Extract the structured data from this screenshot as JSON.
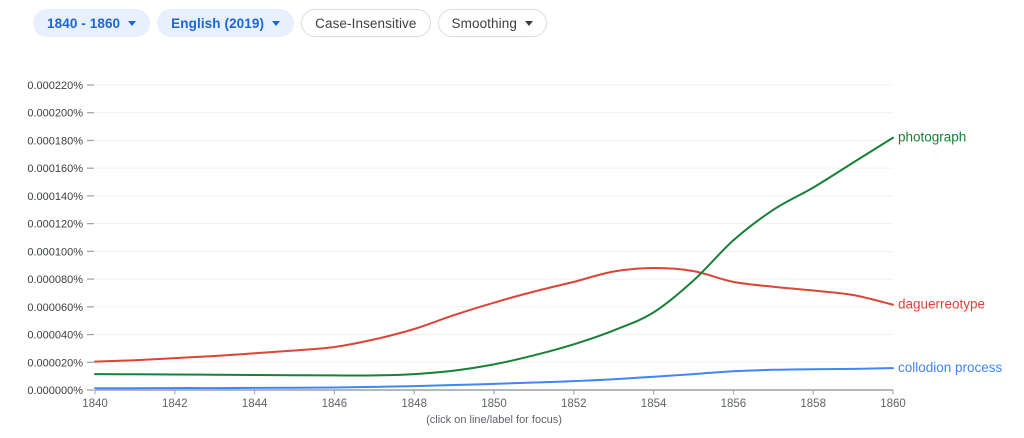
{
  "toolbar": {
    "chips": {
      "year_range": {
        "label": "1840 - 1860",
        "has_caret": true
      },
      "corpus": {
        "label": "English (2019)",
        "has_caret": true
      },
      "case": {
        "label": "Case-Insensitive",
        "has_caret": false
      },
      "smoothing": {
        "label": "Smoothing",
        "has_caret": true
      }
    }
  },
  "colors": {
    "chip_filled_bg": "#e8f0fe",
    "chip_filled_text": "#1967d2",
    "chip_outlined_border": "#dadce0",
    "chip_outlined_text": "#3c4043",
    "grid_line": "#f1f1f1",
    "axis_line": "#9aa0a6",
    "tick_mark": "#9aa0a6",
    "y_label_text": "#3c4043",
    "x_label_text": "#5f6368",
    "caption_text": "#5f6368",
    "photograph_green": "#188038",
    "daguerreotype_red": "#db4437",
    "collodion_blue": "#4285f4"
  },
  "chart_data": {
    "type": "line",
    "title": "",
    "xlabel": "",
    "ylabel": "",
    "units": "percent of corpus",
    "x": [
      1840,
      1841,
      1842,
      1843,
      1844,
      1845,
      1846,
      1847,
      1848,
      1849,
      1850,
      1851,
      1852,
      1853,
      1854,
      1855,
      1856,
      1857,
      1858,
      1859,
      1860
    ],
    "series": [
      {
        "name": "daguerreotype",
        "color": "#db4437",
        "values": [
          2.05e-05,
          2.15e-05,
          2.3e-05,
          2.45e-05,
          2.65e-05,
          2.85e-05,
          3.1e-05,
          3.65e-05,
          4.4e-05,
          5.4e-05,
          6.3e-05,
          7.1e-05,
          7.8e-05,
          8.55e-05,
          8.8e-05,
          8.58e-05,
          7.8e-05,
          7.45e-05,
          7.18e-05,
          6.85e-05,
          6.15e-05
        ]
      },
      {
        "name": "photograph",
        "color": "#188038",
        "values": [
          1.15e-05,
          1.13e-05,
          1.12e-05,
          1.1e-05,
          1.08e-05,
          1.06e-05,
          1.05e-05,
          1.05e-05,
          1.15e-05,
          1.4e-05,
          1.85e-05,
          2.5e-05,
          3.3e-05,
          4.3e-05,
          5.6e-05,
          7.9e-05,
          0.000108,
          0.00013,
          0.000146,
          0.000164,
          0.000182
        ]
      },
      {
        "name": "collodion process",
        "color": "#4285f4",
        "values": [
          1.3e-06,
          1.3e-06,
          1.4e-06,
          1.4e-06,
          1.5e-06,
          1.6e-06,
          1.8e-06,
          2.2e-06,
          2.8e-06,
          3.6e-06,
          4.4e-06,
          5.4e-06,
          6.4e-06,
          7.8e-06,
          9.5e-06,
          1.15e-05,
          1.35e-05,
          1.46e-05,
          1.5e-05,
          1.52e-05,
          1.58e-05
        ]
      }
    ],
    "xlim": [
      1840,
      1860
    ],
    "ylim": [
      0,
      0.00022
    ],
    "y_ticks": [
      {
        "value": 0.0,
        "label": "0.000000%"
      },
      {
        "value": 2e-05,
        "label": "0.000020%"
      },
      {
        "value": 4e-05,
        "label": "0.000040%"
      },
      {
        "value": 6e-05,
        "label": "0.000060%"
      },
      {
        "value": 8e-05,
        "label": "0.000080%"
      },
      {
        "value": 0.0001,
        "label": "0.000100%"
      },
      {
        "value": 0.00012,
        "label": "0.000120%"
      },
      {
        "value": 0.00014,
        "label": "0.000140%"
      },
      {
        "value": 0.00016,
        "label": "0.000160%"
      },
      {
        "value": 0.00018,
        "label": "0.000180%"
      },
      {
        "value": 0.0002,
        "label": "0.000200%"
      },
      {
        "value": 0.00022,
        "label": "0.000220%"
      }
    ],
    "x_ticks": [
      {
        "value": 1840,
        "label": "1840"
      },
      {
        "value": 1842,
        "label": "1842"
      },
      {
        "value": 1844,
        "label": "1844"
      },
      {
        "value": 1846,
        "label": "1846"
      },
      {
        "value": 1848,
        "label": "1848"
      },
      {
        "value": 1850,
        "label": "1850"
      },
      {
        "value": 1852,
        "label": "1852"
      },
      {
        "value": 1854,
        "label": "1854"
      },
      {
        "value": 1856,
        "label": "1856"
      },
      {
        "value": 1858,
        "label": "1858"
      },
      {
        "value": 1860,
        "label": "1860"
      }
    ],
    "grid": "horizontal-light",
    "legend_position": "line-end-labels",
    "caption": "(click on line/label for focus)"
  }
}
